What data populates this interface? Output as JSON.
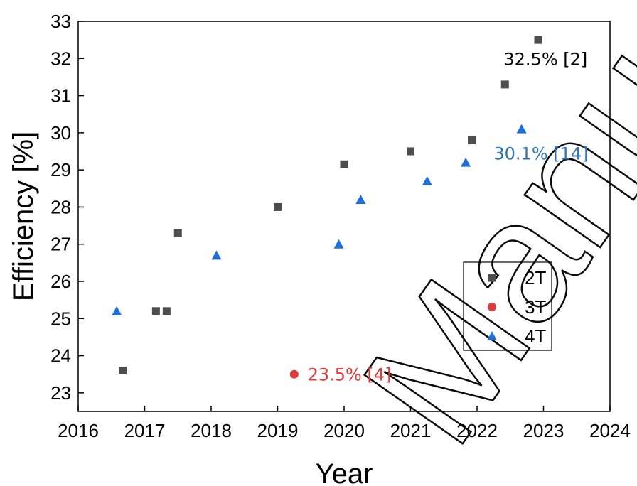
{
  "chart_data": {
    "type": "scatter",
    "xlabel": "Year",
    "ylabel": "Efficiency [%]",
    "xlim": [
      2016,
      2024
    ],
    "ylim": [
      22.5,
      33
    ],
    "x_ticks": [
      2016,
      2017,
      2018,
      2019,
      2020,
      2021,
      2022,
      2023,
      2024
    ],
    "y_ticks": [
      23,
      24,
      25,
      26,
      27,
      28,
      29,
      30,
      31,
      32,
      33
    ],
    "legend_position": "center-right",
    "series": [
      {
        "name": "2T",
        "marker": "square",
        "color": "#4d4d4d",
        "points": [
          {
            "x": 2016.67,
            "y": 23.6
          },
          {
            "x": 2017.17,
            "y": 25.2
          },
          {
            "x": 2017.33,
            "y": 25.2
          },
          {
            "x": 2017.5,
            "y": 27.3
          },
          {
            "x": 2019.0,
            "y": 28.0
          },
          {
            "x": 2020.0,
            "y": 29.15
          },
          {
            "x": 2021.0,
            "y": 29.5
          },
          {
            "x": 2021.92,
            "y": 29.8
          },
          {
            "x": 2022.42,
            "y": 31.3
          },
          {
            "x": 2022.92,
            "y": 32.5
          }
        ]
      },
      {
        "name": "3T",
        "marker": "circle",
        "color": "#e03a3a",
        "points": [
          {
            "x": 2019.25,
            "y": 23.5
          }
        ]
      },
      {
        "name": "4T",
        "marker": "triangle",
        "color": "#1f6fd6",
        "points": [
          {
            "x": 2016.58,
            "y": 25.2
          },
          {
            "x": 2018.08,
            "y": 26.7
          },
          {
            "x": 2019.92,
            "y": 27.0
          },
          {
            "x": 2020.25,
            "y": 28.2
          },
          {
            "x": 2021.25,
            "y": 28.7
          },
          {
            "x": 2021.83,
            "y": 29.2
          },
          {
            "x": 2022.67,
            "y": 30.1
          }
        ]
      }
    ],
    "annotations": [
      {
        "text": "32.5% [2]",
        "color": "#000000",
        "x": 2022.4,
        "y": 32.0
      },
      {
        "text": "30.1% [14]",
        "color": "#2e75b6",
        "x": 2022.25,
        "y": 29.45
      },
      {
        "text": "23.5% [4]",
        "color": "#e03a3a",
        "x": 2019.45,
        "y": 23.5
      }
    ],
    "watermark": "Manu"
  }
}
